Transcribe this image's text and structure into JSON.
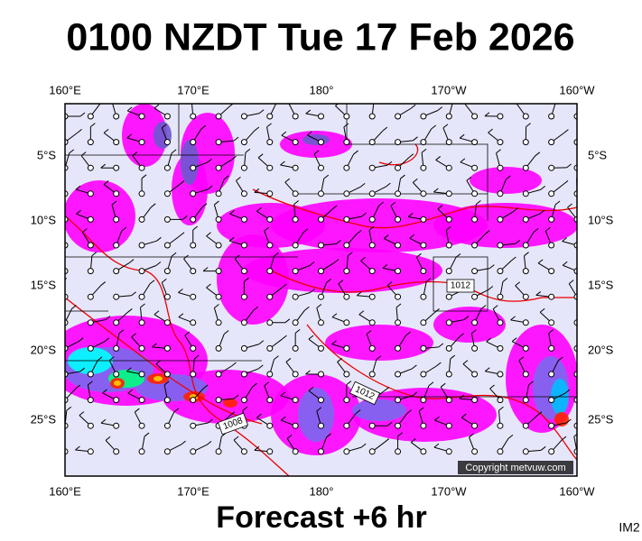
{
  "header": {
    "title": "0100 NZDT Tue 17 Feb 2026"
  },
  "map": {
    "lon_labels": [
      "160°E",
      "170°E",
      "180°",
      "170°W",
      "160°W"
    ],
    "lat_labels": [
      "5°S",
      "10°S",
      "15°S",
      "20°S",
      "25°S"
    ],
    "contour_labels": [
      "1012",
      "1012",
      "1008"
    ],
    "copyright": "Copyright metvuw.com"
  },
  "footer": {
    "forecast": "Forecast +6 hr",
    "code": "IM2"
  }
}
